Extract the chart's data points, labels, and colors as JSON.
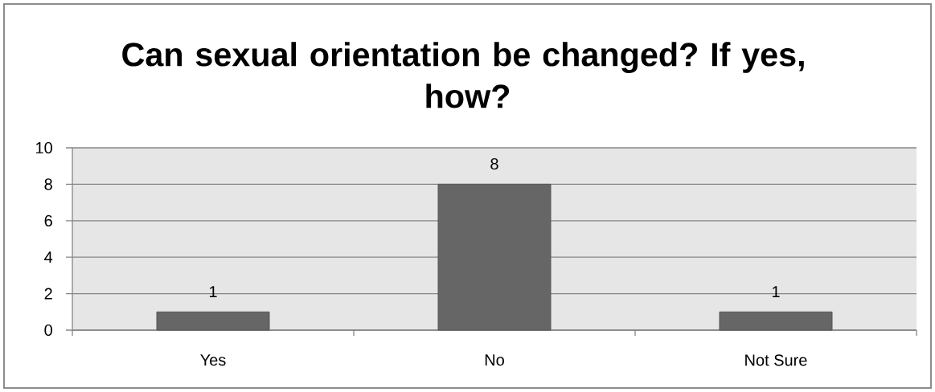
{
  "chart_data": {
    "type": "bar",
    "title": "Can sexual orientation be changed? If yes, how?",
    "categories": [
      "Yes",
      "No",
      "Not Sure"
    ],
    "values": [
      1,
      8,
      1
    ],
    "color": "#666666",
    "ylim": [
      0,
      10
    ],
    "yticks": [
      0,
      2,
      4,
      6,
      8,
      10
    ],
    "grid": "y",
    "data_labels": true
  }
}
